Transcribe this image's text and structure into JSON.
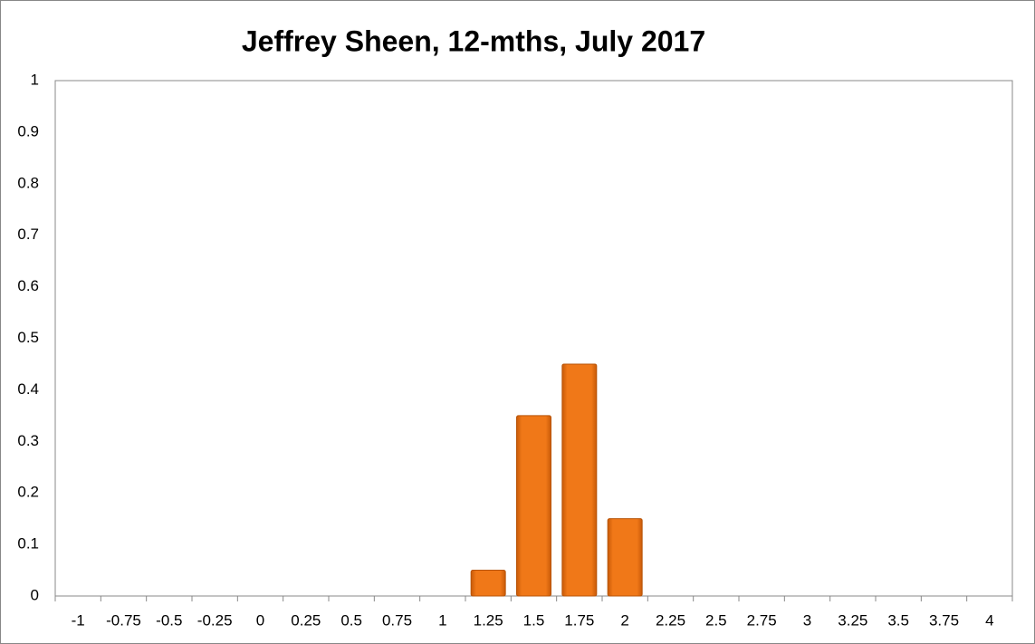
{
  "chart_data": {
    "type": "bar",
    "title": "Jeffrey Sheen, 12-mths, July 2017",
    "categories": [
      "-1",
      "-0.75",
      "-0.5",
      "-0.25",
      "0",
      "0.25",
      "0.5",
      "0.75",
      "1",
      "1.25",
      "1.5",
      "1.75",
      "2",
      "2.25",
      "2.5",
      "2.75",
      "3",
      "3.25",
      "3.5",
      "3.75",
      "4"
    ],
    "values": [
      0,
      0,
      0,
      0,
      0,
      0,
      0,
      0,
      0,
      0.05,
      0.35,
      0.45,
      0.15,
      0,
      0,
      0,
      0,
      0,
      0,
      0,
      0
    ],
    "color": "#f07818",
    "ylim": [
      0,
      1
    ],
    "yticks": [
      0,
      0.1,
      0.2,
      0.3,
      0.4,
      0.5,
      0.6,
      0.7,
      0.8,
      0.9,
      1
    ],
    "grid": false
  }
}
